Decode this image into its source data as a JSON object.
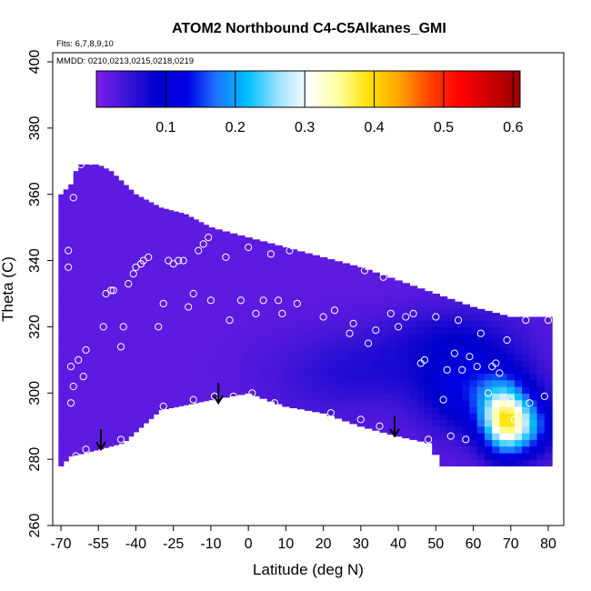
{
  "chart_data": {
    "type": "heatmap",
    "title": "ATOM2 Northbound C4-C5Alkanes_GMI",
    "flights_note": "Flts: 6,7,8,9,10",
    "dates_note": "MMDD: 0210,0213,0215,0218,0219",
    "xlabel": "Latitude (deg N)",
    "ylabel": "Theta (C)",
    "xlim": [
      -70,
      80
    ],
    "ylim": [
      260,
      400
    ],
    "x_ticks": [
      -70,
      -55,
      -40,
      -25,
      -10,
      0,
      10,
      20,
      30,
      40,
      50,
      60,
      70,
      80
    ],
    "x_tick_labels": [
      "-70",
      "-55",
      "-40",
      "-25",
      "-10",
      "0",
      "10",
      "20",
      "30",
      "40",
      "50",
      "60",
      "70",
      "80"
    ],
    "y_ticks": [
      260,
      280,
      300,
      320,
      340,
      360,
      380,
      400
    ],
    "y_tick_labels": [
      "260",
      "280",
      "300",
      "320",
      "340",
      "360",
      "380",
      "400"
    ],
    "colorbar": {
      "range": [
        0,
        0.61
      ],
      "ticks": [
        0.1,
        0.2,
        0.3,
        0.4,
        0.5,
        0.6
      ],
      "tick_labels": [
        "0.1",
        "0.2",
        "0.3",
        "0.4",
        "0.5",
        "0.6"
      ],
      "colors": [
        "#7B1FE8",
        "#3A14D6",
        "#0000CC",
        "#0000E6",
        "#1E78FF",
        "#00BFFF",
        "#9AE0FF",
        "#FFFFFF",
        "#FFFFA0",
        "#FFE100",
        "#FFA500",
        "#FF4500",
        "#FF0000",
        "#CC0000",
        "#990000"
      ]
    },
    "background_level": 0.02,
    "upper_boundary": [
      [
        -70,
        360
      ],
      [
        -66,
        363
      ],
      [
        -63,
        369
      ],
      [
        -55,
        369
      ],
      [
        -50,
        367
      ],
      [
        -40,
        360
      ],
      [
        -30,
        356
      ],
      [
        -20,
        354
      ],
      [
        -10,
        350
      ],
      [
        0,
        347
      ],
      [
        10,
        344
      ],
      [
        20,
        341
      ],
      [
        30,
        338
      ],
      [
        40,
        334
      ],
      [
        50,
        330
      ],
      [
        60,
        326
      ],
      [
        70,
        323
      ],
      [
        80,
        323
      ]
    ],
    "lower_boundary": [
      [
        -70,
        278
      ],
      [
        -66,
        281
      ],
      [
        -55,
        283
      ],
      [
        -45,
        285
      ],
      [
        -30,
        295
      ],
      [
        -10,
        298
      ],
      [
        0,
        300
      ],
      [
        10,
        296
      ],
      [
        20,
        294
      ],
      [
        30,
        290
      ],
      [
        40,
        287
      ],
      [
        48,
        285
      ],
      [
        52,
        278
      ],
      [
        80,
        278
      ]
    ],
    "concentration_features": [
      {
        "lat": 35,
        "theta": 308,
        "value": 0.06,
        "sx": 18,
        "sy": 8
      },
      {
        "lat": 55,
        "theta": 318,
        "value": 0.06,
        "sx": 12,
        "sy": 6
      },
      {
        "lat": 62,
        "theta": 300,
        "value": 0.13,
        "sx": 10,
        "sy": 9
      },
      {
        "lat": 68,
        "theta": 292,
        "value": 0.26,
        "sx": 4,
        "sy": 7
      },
      {
        "lat": 74,
        "theta": 290,
        "value": 0.17,
        "sx": 5,
        "sy": 6
      },
      {
        "lat": 20,
        "theta": 300,
        "value": 0.03,
        "sx": 10,
        "sy": 7
      }
    ],
    "sample_points": [
      [
        -67,
        343
      ],
      [
        -67,
        338
      ],
      [
        -66,
        308
      ],
      [
        -66,
        297
      ],
      [
        -66,
        278
      ],
      [
        -64,
        281
      ],
      [
        -65,
        302
      ],
      [
        -63,
        310
      ],
      [
        -61,
        305
      ],
      [
        -60,
        313
      ],
      [
        -60,
        283
      ],
      [
        -62,
        369
      ],
      [
        -65,
        359
      ],
      [
        -58,
        370
      ],
      [
        -53,
        320
      ],
      [
        -52,
        330
      ],
      [
        -50,
        331
      ],
      [
        -49,
        331
      ],
      [
        -46,
        314
      ],
      [
        -45,
        320
      ],
      [
        -46,
        286
      ],
      [
        -43,
        333
      ],
      [
        -41,
        336
      ],
      [
        -40,
        338
      ],
      [
        -38,
        339
      ],
      [
        -37,
        340
      ],
      [
        -35,
        341
      ],
      [
        -31,
        320
      ],
      [
        -29,
        327
      ],
      [
        -27,
        340
      ],
      [
        -25,
        339
      ],
      [
        -23,
        340
      ],
      [
        -21,
        340
      ],
      [
        -19,
        326
      ],
      [
        -17,
        330
      ],
      [
        -17,
        298
      ],
      [
        -29,
        296
      ],
      [
        -15,
        343
      ],
      [
        -13,
        345
      ],
      [
        -11,
        347
      ],
      [
        -10,
        328
      ],
      [
        -9,
        299
      ],
      [
        -6,
        341
      ],
      [
        -5,
        322
      ],
      [
        -4,
        299
      ],
      [
        -2,
        328
      ],
      [
        0,
        344
      ],
      [
        1,
        300
      ],
      [
        2,
        324
      ],
      [
        4,
        328
      ],
      [
        6,
        342
      ],
      [
        7,
        297
      ],
      [
        8,
        328
      ],
      [
        9,
        324
      ],
      [
        11,
        343
      ],
      [
        13,
        327
      ],
      [
        14,
        294
      ],
      [
        16,
        344
      ],
      [
        18,
        344
      ],
      [
        20,
        323
      ],
      [
        22,
        294
      ],
      [
        23,
        325
      ],
      [
        26,
        347
      ],
      [
        27,
        318
      ],
      [
        28,
        321
      ],
      [
        30,
        292
      ],
      [
        31,
        337
      ],
      [
        32,
        315
      ],
      [
        34,
        319
      ],
      [
        35,
        290
      ],
      [
        36,
        335
      ],
      [
        38,
        324
      ],
      [
        40,
        320
      ],
      [
        42,
        323
      ],
      [
        44,
        324
      ],
      [
        46,
        309
      ],
      [
        47,
        310
      ],
      [
        48,
        286
      ],
      [
        50,
        323
      ],
      [
        52,
        298
      ],
      [
        53,
        307
      ],
      [
        54,
        287
      ],
      [
        55,
        312
      ],
      [
        56,
        322
      ],
      [
        57,
        307
      ],
      [
        58,
        286
      ],
      [
        59,
        311
      ],
      [
        61,
        308
      ],
      [
        62,
        318
      ],
      [
        64,
        300
      ],
      [
        65,
        308
      ],
      [
        66,
        309
      ],
      [
        67,
        306
      ],
      [
        68,
        296
      ],
      [
        69,
        316
      ],
      [
        70,
        298
      ],
      [
        71,
        292
      ],
      [
        72,
        290
      ],
      [
        74,
        322
      ],
      [
        75,
        297
      ],
      [
        79,
        299
      ],
      [
        80,
        322
      ]
    ],
    "arrows": [
      {
        "lat": -54,
        "theta": 283
      },
      {
        "lat": -8,
        "theta": 297
      },
      {
        "lat": 39,
        "theta": 287
      }
    ]
  }
}
